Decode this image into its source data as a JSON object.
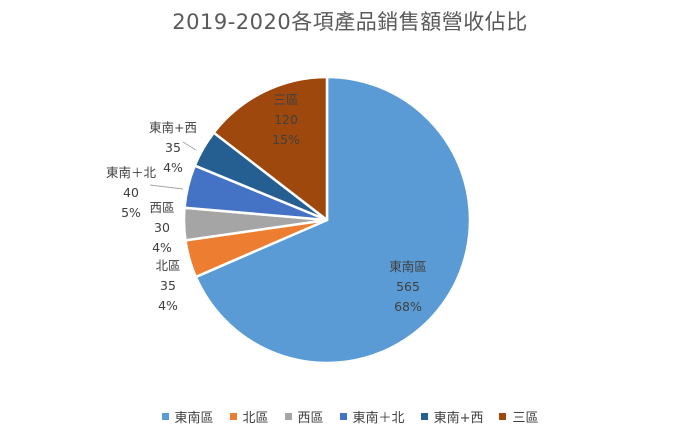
{
  "chart_data": {
    "type": "pie",
    "title": "2019-2020各項產品銷售額營收佔比",
    "slices": [
      {
        "label": "東南區",
        "value": 565,
        "percent": "68%",
        "color": "#5b9bd5"
      },
      {
        "label": "北區",
        "value": 35,
        "percent": "4%",
        "color": "#ed7d31"
      },
      {
        "label": "西區",
        "value": 30,
        "percent": "4%",
        "color": "#a5a5a5"
      },
      {
        "label": "東南＋北",
        "value": 40,
        "percent": "5%",
        "color": "#4472c4"
      },
      {
        "label": "東南+西",
        "value": 35,
        "percent": "4%",
        "color": "#255e91"
      },
      {
        "label": "三區",
        "value": 120,
        "percent": "15%",
        "color": "#9e480e"
      }
    ],
    "legend_position": "bottom"
  }
}
